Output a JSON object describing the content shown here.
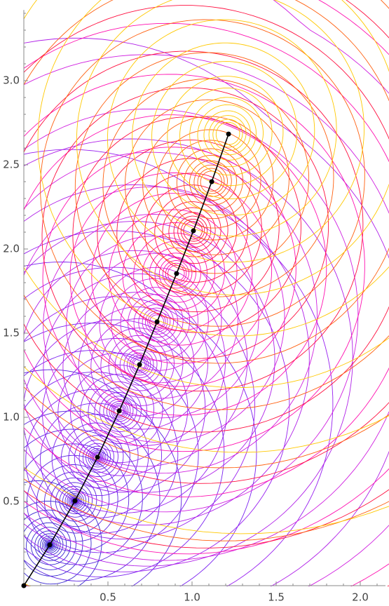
{
  "chart_data": {
    "type": "spiral",
    "x": [
      0,
      0.154,
      0.304,
      0.438,
      0.567,
      0.688,
      0.792,
      0.908,
      1.008,
      1.117,
      1.217
    ],
    "values": [
      0,
      0.242,
      0.504,
      0.763,
      1.038,
      1.313,
      1.567,
      1.854,
      2.108,
      2.4,
      2.683
    ],
    "color": "#000000",
    "point_colors": [
      null,
      "#3a2ad0",
      "#5a22e0",
      "#7a20f0",
      "#9820f0",
      "#b020e8",
      "#d020e0",
      "#ff10b0",
      "#ff1040",
      "#ff6010",
      "#ffc800"
    ],
    "xlim": [
      0,
      2.15
    ],
    "ylim": [
      0,
      3.42
    ],
    "xticks": [
      0.5,
      {
        "value": 1,
        "label": "1.0"
      },
      1.5,
      {
        "value": 2,
        "label": "2.0"
      }
    ],
    "yticks": [
      0.5,
      {
        "value": 1,
        "label": "1.0"
      },
      1.5,
      {
        "value": 2,
        "label": "2.0"
      },
      2.5,
      {
        "value": 3,
        "label": "3.0"
      }
    ]
  }
}
